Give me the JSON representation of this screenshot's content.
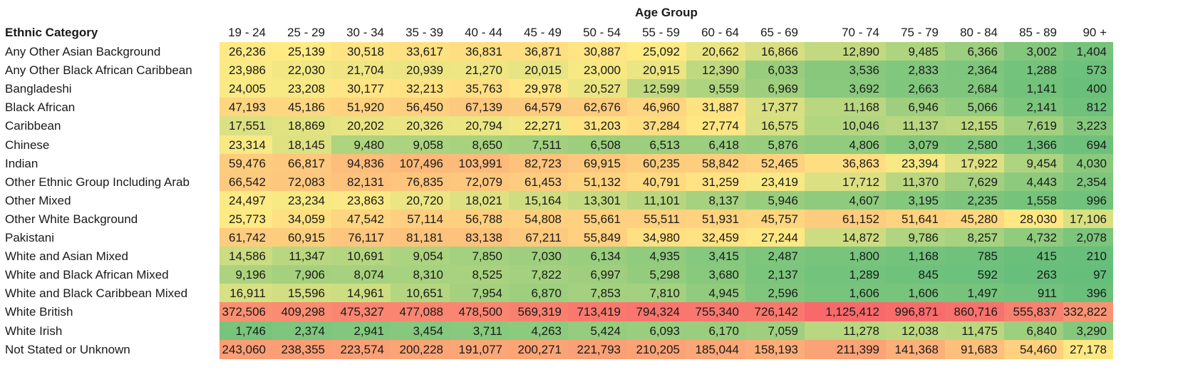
{
  "chart_data": {
    "type": "heatmap",
    "column_group_label": "Age Group",
    "row_header": "Ethnic Category",
    "columns": [
      "19 - 24",
      "25 - 29",
      "30 - 34",
      "35 - 39",
      "40 - 44",
      "45 - 49",
      "50 - 54",
      "55 - 59",
      "60 - 64",
      "65 - 69",
      "70 - 74",
      "75 - 79",
      "80 - 84",
      "85 - 89",
      "90 +"
    ],
    "rows": [
      {
        "label": "Any Other Asian Background",
        "values": [
          "26,236",
          "25,139",
          "30,518",
          "33,617",
          "36,831",
          "36,871",
          "30,887",
          "25,092",
          "20,662",
          "16,866",
          "12,890",
          "9,485",
          "6,366",
          "3,002",
          "1,404"
        ]
      },
      {
        "label": "Any Other Black African Caribbean",
        "values": [
          "23,986",
          "22,030",
          "21,704",
          "20,939",
          "21,270",
          "20,015",
          "23,000",
          "20,915",
          "12,390",
          "6,033",
          "3,536",
          "2,833",
          "2,364",
          "1,288",
          "573"
        ]
      },
      {
        "label": "Bangladeshi",
        "values": [
          "24,005",
          "23,208",
          "30,177",
          "32,213",
          "35,763",
          "29,978",
          "20,527",
          "12,599",
          "9,559",
          "6,969",
          "3,692",
          "2,663",
          "2,684",
          "1,141",
          "400"
        ]
      },
      {
        "label": "Black African",
        "values": [
          "47,193",
          "45,186",
          "51,920",
          "56,450",
          "67,139",
          "64,579",
          "62,676",
          "46,960",
          "31,887",
          "17,377",
          "11,168",
          "6,946",
          "5,066",
          "2,141",
          "812"
        ]
      },
      {
        "label": "Caribbean",
        "values": [
          "17,551",
          "18,869",
          "20,202",
          "20,326",
          "20,794",
          "22,271",
          "31,203",
          "37,284",
          "27,774",
          "16,575",
          "10,046",
          "11,137",
          "12,155",
          "7,619",
          "3,223"
        ]
      },
      {
        "label": "Chinese",
        "values": [
          "23,314",
          "18,145",
          "9,480",
          "9,058",
          "8,650",
          "7,511",
          "6,508",
          "6,513",
          "6,418",
          "5,876",
          "4,806",
          "3,079",
          "2,580",
          "1,366",
          "694"
        ]
      },
      {
        "label": "Indian",
        "values": [
          "59,476",
          "66,817",
          "94,836",
          "107,496",
          "103,991",
          "82,723",
          "69,915",
          "60,235",
          "58,842",
          "52,465",
          "36,863",
          "23,394",
          "17,922",
          "9,454",
          "4,030"
        ]
      },
      {
        "label": "Other Ethnic Group Including Arab",
        "values": [
          "66,542",
          "72,083",
          "82,131",
          "76,835",
          "72,079",
          "61,453",
          "51,132",
          "40,791",
          "31,259",
          "23,419",
          "17,712",
          "11,370",
          "7,629",
          "4,443",
          "2,354"
        ]
      },
      {
        "label": "Other Mixed",
        "values": [
          "24,497",
          "23,234",
          "23,863",
          "20,720",
          "18,021",
          "15,164",
          "13,301",
          "11,101",
          "8,137",
          "5,946",
          "4,607",
          "3,195",
          "2,235",
          "1,558",
          "996"
        ]
      },
      {
        "label": "Other White Background",
        "values": [
          "25,773",
          "34,059",
          "47,542",
          "57,114",
          "56,788",
          "54,808",
          "55,661",
          "55,511",
          "51,931",
          "45,757",
          "61,152",
          "51,641",
          "45,280",
          "28,030",
          "17,106"
        ]
      },
      {
        "label": "Pakistani",
        "values": [
          "61,742",
          "60,915",
          "76,117",
          "81,181",
          "83,138",
          "67,211",
          "55,849",
          "34,980",
          "32,459",
          "27,244",
          "14,872",
          "9,786",
          "8,257",
          "4,732",
          "2,078"
        ]
      },
      {
        "label": "White and Asian Mixed",
        "values": [
          "14,586",
          "11,347",
          "10,691",
          "9,054",
          "7,850",
          "7,030",
          "6,134",
          "4,935",
          "3,415",
          "2,487",
          "1,800",
          "1,168",
          "785",
          "415",
          "210"
        ]
      },
      {
        "label": "White and Black African Mixed",
        "values": [
          "9,196",
          "7,906",
          "8,074",
          "8,310",
          "8,525",
          "7,822",
          "6,997",
          "5,298",
          "3,680",
          "2,137",
          "1,289",
          "845",
          "592",
          "263",
          "97"
        ]
      },
      {
        "label": "White and Black Caribbean Mixed",
        "values": [
          "16,911",
          "15,596",
          "14,961",
          "10,651",
          "7,954",
          "6,870",
          "7,853",
          "7,810",
          "4,945",
          "2,596",
          "1,606",
          "1,606",
          "1,497",
          "911",
          "396"
        ]
      },
      {
        "label": "White British",
        "values": [
          "372,506",
          "409,298",
          "475,327",
          "477,088",
          "478,500",
          "569,319",
          "713,419",
          "794,324",
          "755,340",
          "726,142",
          "1,125,412",
          "996,871",
          "860,716",
          "555,837",
          "332,822"
        ]
      },
      {
        "label": "White Irish",
        "values": [
          "1,746",
          "2,374",
          "2,941",
          "3,454",
          "3,711",
          "4,263",
          "5,424",
          "6,093",
          "6,170",
          "7,059",
          "11,278",
          "12,038",
          "11,475",
          "6,840",
          "3,290"
        ]
      },
      {
        "label": "Not Stated or Unknown",
        "values": [
          "243,060",
          "238,355",
          "223,574",
          "200,228",
          "191,077",
          "200,271",
          "221,793",
          "210,205",
          "185,044",
          "158,193",
          "211,399",
          "141,368",
          "91,683",
          "54,460",
          "27,178"
        ]
      }
    ],
    "color_scale": {
      "low": "#63be7b",
      "mid": "#ffeb84",
      "high": "#f8696b",
      "mid_value": 25000,
      "max_value": 1125412
    }
  }
}
